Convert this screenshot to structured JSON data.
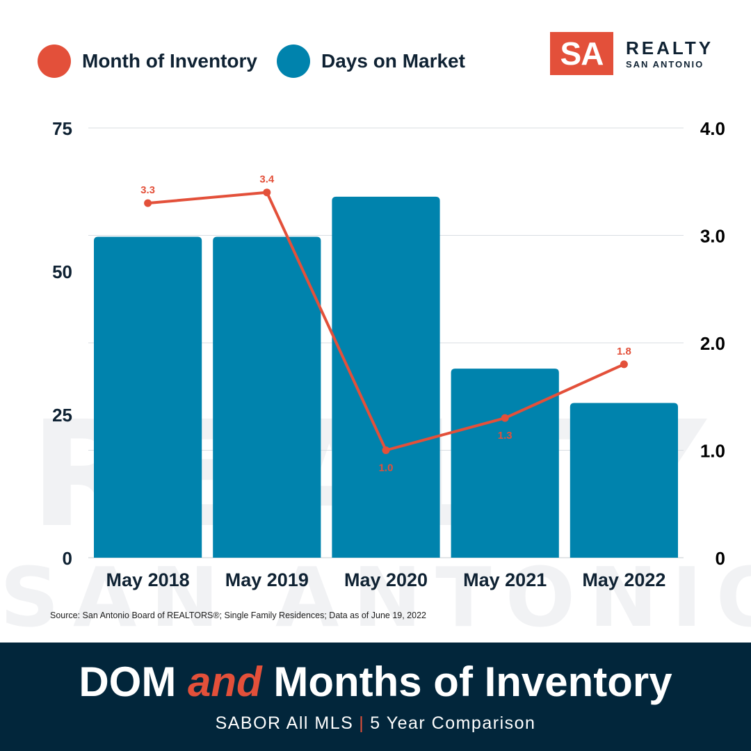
{
  "colors": {
    "inventory": "#e3503a",
    "dom": "#0083ad",
    "navy": "#02263b",
    "text": "#0f2233"
  },
  "legend": [
    {
      "label": "Month of Inventory",
      "color": "#e3503a"
    },
    {
      "label": "Days on Market",
      "color": "#0083ad"
    }
  ],
  "logo": {
    "mark": "SA",
    "line1": "REALTY",
    "line2": "SAN ANTONIO"
  },
  "watermark": {
    "line1": "REALTY",
    "line2": "SAN ANTONIO"
  },
  "chart_data": {
    "type": "bar",
    "categories": [
      "May 2018",
      "May 2019",
      "May 2020",
      "May 2021",
      "May 2022"
    ],
    "series": [
      {
        "name": "Days on Market",
        "type": "bar",
        "axis": "left",
        "color": "#0083ad",
        "values": [
          56,
          56,
          63,
          33,
          27
        ]
      },
      {
        "name": "Month of Inventory",
        "type": "line",
        "axis": "right",
        "color": "#e3503a",
        "values": [
          3.3,
          3.4,
          1.0,
          1.3,
          1.8
        ],
        "labels": [
          "3.3",
          "3.4",
          "1.0",
          "1.3",
          "1.8"
        ]
      }
    ],
    "y_left": {
      "ylim": [
        0,
        75
      ],
      "ticks": [
        "0",
        "25",
        "50",
        "75"
      ]
    },
    "y_right": {
      "ylim": [
        0,
        4.0
      ],
      "ticks": [
        "0",
        "1.0",
        "2.0",
        "3.0",
        "4.0"
      ]
    },
    "grid": true,
    "legend_position": "top-left"
  },
  "source": "Source: San Antonio Board of REALTORS®; Single Family Residences; Data as of June 19, 2022",
  "footer": {
    "title_a": "DOM ",
    "title_and": "and",
    "title_b": " Months of Inventory",
    "sub_a": "SABOR All MLS",
    "sub_sep": "|",
    "sub_b": "5 Year Comparison"
  }
}
